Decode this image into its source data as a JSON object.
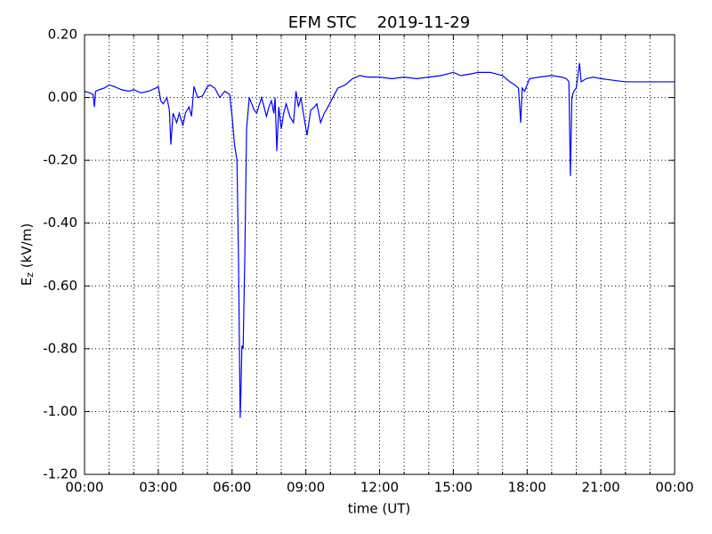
{
  "chart_data": {
    "type": "line",
    "title": "EFM STC    2019-11-29",
    "xlabel": "time (UT)",
    "ylabel": [
      "E",
      "z",
      " (kV/m)"
    ],
    "xlim": [
      0,
      24
    ],
    "ylim": [
      -1.2,
      0.2
    ],
    "xticks": [
      {
        "value": 0,
        "label": "00:00"
      },
      {
        "value": 3,
        "label": "03:00"
      },
      {
        "value": 6,
        "label": "06:00"
      },
      {
        "value": 9,
        "label": "09:00"
      },
      {
        "value": 12,
        "label": "12:00"
      },
      {
        "value": 15,
        "label": "15:00"
      },
      {
        "value": 18,
        "label": "18:00"
      },
      {
        "value": 21,
        "label": "21:00"
      },
      {
        "value": 24,
        "label": "00:00"
      }
    ],
    "x_minor_ticks": [
      1,
      2,
      4,
      5,
      7,
      8,
      10,
      11,
      13,
      14,
      16,
      17,
      19,
      20,
      22,
      23
    ],
    "yticks": [
      {
        "value": 0.2,
        "label": "0.20"
      },
      {
        "value": 0,
        "label": "0.00"
      },
      {
        "value": -0.2,
        "label": "-0.20"
      },
      {
        "value": -0.4,
        "label": "-0.40"
      },
      {
        "value": -0.6,
        "label": "-0.60"
      },
      {
        "value": -0.8,
        "label": "-0.80"
      },
      {
        "value": -1,
        "label": "-1.00"
      },
      {
        "value": -1.2,
        "label": "-1.20"
      }
    ],
    "grid": true,
    "series": [
      {
        "color": "#0000ff",
        "x": [
          0,
          0.2,
          0.35,
          0.4,
          0.45,
          0.6,
          0.8,
          1.0,
          1.2,
          1.5,
          1.8,
          2.0,
          2.3,
          2.6,
          2.9,
          3.0,
          3.1,
          3.2,
          3.35,
          3.45,
          3.51,
          3.6,
          3.75,
          3.85,
          4.0,
          4.1,
          4.25,
          4.35,
          4.45,
          4.6,
          4.8,
          5.0,
          5.1,
          5.3,
          5.5,
          5.7,
          5.9,
          6.0,
          6.1,
          6.2,
          6.26,
          6.3,
          6.33,
          6.36,
          6.4,
          6.45,
          6.52,
          6.59,
          6.7,
          6.9,
          7.0,
          7.2,
          7.4,
          7.5,
          7.6,
          7.7,
          7.75,
          7.82,
          7.9,
          8.0,
          8.1,
          8.2,
          8.35,
          8.5,
          8.6,
          8.7,
          8.8,
          8.9,
          9.05,
          9.2,
          9.35,
          9.45,
          9.6,
          9.75,
          9.9,
          10.1,
          10.3,
          10.6,
          10.9,
          11.2,
          11.5,
          12.0,
          12.5,
          13.0,
          13.5,
          14.0,
          14.5,
          15.0,
          15.3,
          15.7,
          16.0,
          16.5,
          17.0,
          17.3,
          17.5,
          17.65,
          17.74,
          17.8,
          17.9,
          18.1,
          18.5,
          19.0,
          19.4,
          19.6,
          19.7,
          19.76,
          19.82,
          19.9,
          20.0,
          20.13,
          20.2,
          20.4,
          20.7,
          21.0,
          21.5,
          22.0,
          22.5,
          23.0,
          23.5,
          24.0
        ],
        "values": [
          0.02,
          0.015,
          0.01,
          -0.03,
          0.02,
          0.025,
          0.03,
          0.04,
          0.035,
          0.025,
          0.02,
          0.025,
          0.015,
          0.02,
          0.03,
          0.035,
          -0.01,
          -0.02,
          0.0,
          -0.04,
          -0.15,
          -0.05,
          -0.08,
          -0.05,
          -0.09,
          -0.05,
          -0.03,
          -0.06,
          0.035,
          0.0,
          0.005,
          0.035,
          0.04,
          0.03,
          0.0,
          0.02,
          0.01,
          -0.06,
          -0.15,
          -0.2,
          -0.5,
          -0.8,
          -1.02,
          -0.94,
          -0.79,
          -0.8,
          -0.5,
          -0.1,
          0.0,
          -0.04,
          -0.05,
          0.0,
          -0.06,
          -0.03,
          -0.01,
          -0.05,
          0.0,
          -0.17,
          -0.03,
          -0.1,
          -0.05,
          -0.02,
          -0.06,
          -0.08,
          0.02,
          -0.03,
          0.0,
          -0.05,
          -0.12,
          -0.04,
          -0.03,
          -0.02,
          -0.08,
          -0.05,
          -0.03,
          0.0,
          0.03,
          0.04,
          0.06,
          0.07,
          0.065,
          0.065,
          0.06,
          0.065,
          0.06,
          0.065,
          0.07,
          0.08,
          0.07,
          0.075,
          0.08,
          0.08,
          0.07,
          0.05,
          0.04,
          0.03,
          -0.08,
          0.03,
          0.02,
          0.06,
          0.065,
          0.07,
          0.065,
          0.06,
          0.05,
          -0.25,
          0.0,
          0.02,
          0.03,
          0.11,
          0.05,
          0.06,
          0.065,
          0.06,
          0.055,
          0.05,
          0.05,
          0.05,
          0.05,
          0.05
        ]
      }
    ]
  }
}
